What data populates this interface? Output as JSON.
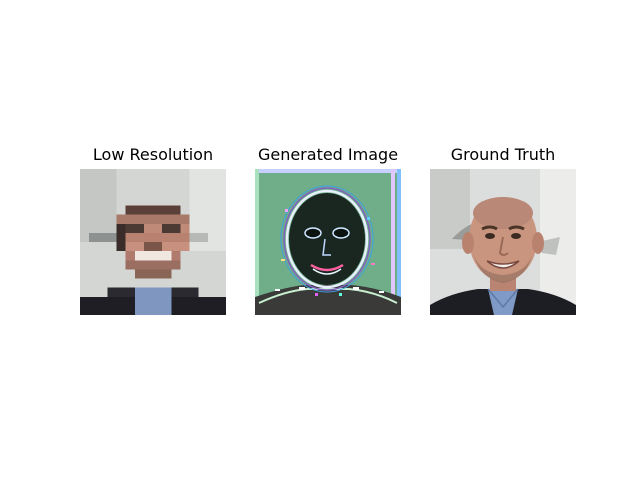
{
  "figure": {
    "panels": [
      {
        "title": "Low Resolution",
        "image_icon": "pixelated-face-photo"
      },
      {
        "title": "Generated Image",
        "image_icon": "noisy-generated-face"
      },
      {
        "title": "Ground Truth",
        "image_icon": "smiling-bald-man-photo"
      }
    ]
  }
}
